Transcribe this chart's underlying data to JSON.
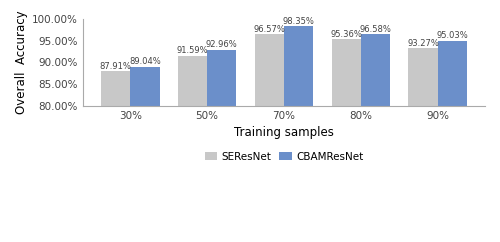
{
  "categories": [
    "30%",
    "50%",
    "70%",
    "80%",
    "90%"
  ],
  "seresnet_values": [
    87.91,
    91.59,
    96.57,
    95.36,
    93.27
  ],
  "cbamresnet_values": [
    89.04,
    92.96,
    98.35,
    96.58,
    95.03
  ],
  "seresnet_labels": [
    "87.91%",
    "91.59%",
    "96.57%",
    "95.36%",
    "93.27%"
  ],
  "cbamresnet_labels": [
    "89.04%",
    "92.96%",
    "98.35%",
    "96.58%",
    "95.03%"
  ],
  "seresnet_color": "#c8c8c8",
  "cbamresnet_color": "#6b8fca",
  "ylabel": "Overall  Accuracy",
  "xlabel": "Training samples",
  "ylim_min": 80.0,
  "ylim_max": 100.0,
  "yticks": [
    80.0,
    85.0,
    90.0,
    95.0,
    100.0
  ],
  "ytick_labels": [
    "80.00%",
    "85.00%",
    "90.00%",
    "95.00%",
    "100.00%"
  ],
  "legend_labels": [
    "SEResNet",
    "CBAMResNet"
  ],
  "bar_width": 0.38,
  "label_fontsize": 6.0,
  "axis_fontsize": 8.5,
  "tick_fontsize": 7.5,
  "legend_fontsize": 7.5
}
